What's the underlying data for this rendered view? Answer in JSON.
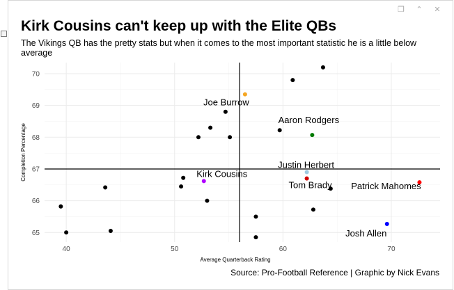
{
  "toolbar": {
    "icons": [
      "copy-icon",
      "expand-icon",
      "close-icon"
    ],
    "glyphs": [
      "❐",
      "⌃",
      "✕"
    ]
  },
  "chart_data": {
    "type": "scatter",
    "title": "Kirk Cousins can't keep up with the Elite QBs",
    "subtitle": "The Vikings QB has the pretty stats but when it comes to the most important statistic he is a little below average",
    "caption": "Source: Pro-Football Reference | Graphic by Nick Evans",
    "xlabel": "Average Quarterback Rating",
    "ylabel": "Completion Percentage",
    "xlim": [
      38,
      74.5
    ],
    "ylim": [
      64.7,
      70.35
    ],
    "xticks": [
      40,
      50,
      60,
      70
    ],
    "yticks": [
      65,
      66,
      67,
      68,
      69,
      70
    ],
    "grid": true,
    "reference_lines": {
      "x": 56,
      "y": 67
    },
    "colors": {
      "default": "#000000",
      "gridline": "#ebebeb",
      "axis_text": "#4d4d4d",
      "reference_line": "#000000"
    },
    "points": [
      {
        "x": 63.7,
        "y": 70.2,
        "label": "",
        "color": "#000000"
      },
      {
        "x": 60.9,
        "y": 69.8,
        "label": "",
        "color": "#000000"
      },
      {
        "x": 56.5,
        "y": 69.35,
        "label": "Joe Burrow",
        "color": "#f5a623"
      },
      {
        "x": 54.7,
        "y": 68.8,
        "label": "",
        "color": "#000000"
      },
      {
        "x": 53.3,
        "y": 68.3,
        "label": "",
        "color": "#000000"
      },
      {
        "x": 59.7,
        "y": 68.22,
        "label": "",
        "color": "#000000"
      },
      {
        "x": 62.7,
        "y": 68.07,
        "label": "Aaron Rodgers",
        "color": "#007a00"
      },
      {
        "x": 52.2,
        "y": 68.0,
        "label": "",
        "color": "#000000"
      },
      {
        "x": 55.1,
        "y": 68.0,
        "label": "",
        "color": "#000000"
      },
      {
        "x": 62.2,
        "y": 66.9,
        "label": "Justin Herbert",
        "color": "#9ecae1"
      },
      {
        "x": 50.8,
        "y": 66.72,
        "label": "",
        "color": "#000000"
      },
      {
        "x": 62.2,
        "y": 66.7,
        "label": "Tom Brady",
        "color": "#d00000"
      },
      {
        "x": 52.7,
        "y": 66.62,
        "label": "Kirk Cousins",
        "color": "#b000ff"
      },
      {
        "x": 72.6,
        "y": 66.58,
        "label": "Patrick Mahomes",
        "color": "#ff0000"
      },
      {
        "x": 50.6,
        "y": 66.45,
        "label": "",
        "color": "#000000"
      },
      {
        "x": 43.6,
        "y": 66.42,
        "label": "",
        "color": "#000000"
      },
      {
        "x": 64.4,
        "y": 66.38,
        "label": "",
        "color": "#000000"
      },
      {
        "x": 53.0,
        "y": 66.0,
        "label": "",
        "color": "#000000"
      },
      {
        "x": 39.5,
        "y": 65.82,
        "label": "",
        "color": "#000000"
      },
      {
        "x": 62.8,
        "y": 65.72,
        "label": "",
        "color": "#000000"
      },
      {
        "x": 57.5,
        "y": 65.5,
        "label": "",
        "color": "#000000"
      },
      {
        "x": 69.6,
        "y": 65.27,
        "label": "Josh Allen",
        "color": "#0000ff"
      },
      {
        "x": 44.1,
        "y": 65.05,
        "label": "",
        "color": "#000000"
      },
      {
        "x": 40.0,
        "y": 65.0,
        "label": "",
        "color": "#000000"
      },
      {
        "x": 57.5,
        "y": 64.85,
        "label": "",
        "color": "#000000"
      }
    ]
  }
}
